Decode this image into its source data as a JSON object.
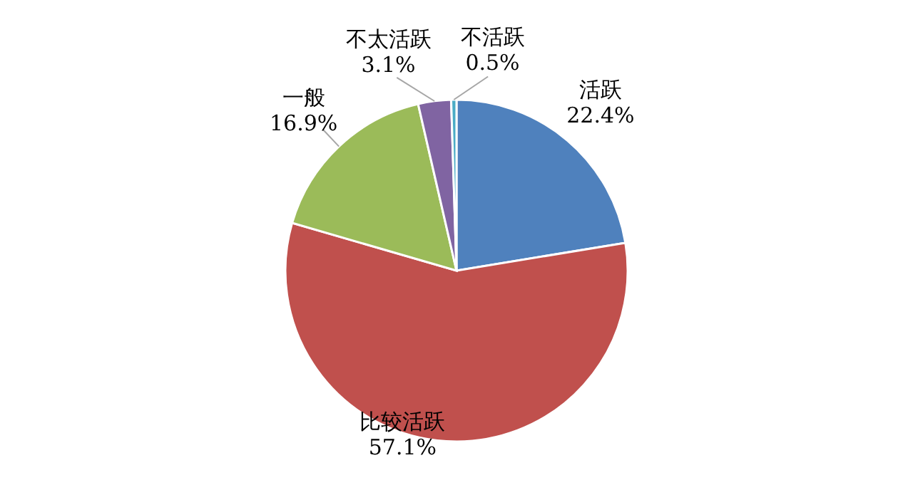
{
  "chart_data": {
    "type": "pie",
    "categories": [
      "活跃",
      "比较活跃",
      "一般",
      "不太活跃",
      "不活跃"
    ],
    "values": [
      22.4,
      57.1,
      16.9,
      3.1,
      0.5
    ],
    "value_labels": [
      "22.4%",
      "57.1%",
      "16.9%",
      "3.1%",
      "0.5%"
    ],
    "colors": [
      "#4f81bd",
      "#c0504d",
      "#9bbb59",
      "#8064a2",
      "#4bacc6"
    ]
  }
}
